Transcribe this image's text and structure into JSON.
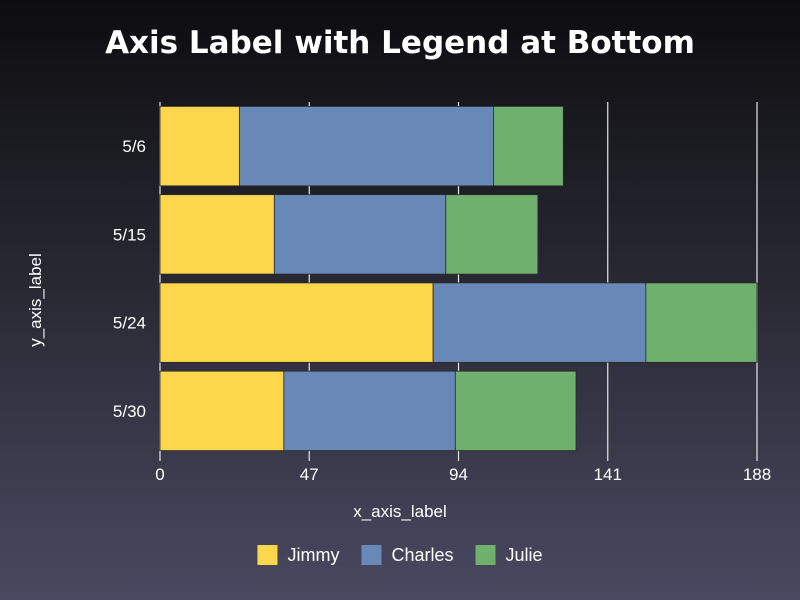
{
  "chart_data": {
    "type": "bar",
    "orientation": "horizontal",
    "stacked": true,
    "title": "Axis Label with Legend at Bottom",
    "xlabel": "x_axis_label",
    "ylabel": "y_axis_label",
    "categories": [
      "5/6",
      "5/15",
      "5/24",
      "5/30"
    ],
    "series": [
      {
        "name": "Jimmy",
        "color": "#fdd74b",
        "values": [
          25,
          36,
          86,
          39
        ]
      },
      {
        "name": "Charles",
        "color": "#6888b7",
        "values": [
          80,
          54,
          67,
          54
        ]
      },
      {
        "name": "Julie",
        "color": "#6fb06e",
        "values": [
          22,
          29,
          35,
          38
        ]
      }
    ],
    "xlim": [
      0,
      188
    ],
    "xticks": [
      0,
      47,
      94,
      141,
      188
    ],
    "grid": true,
    "legend_position": "bottom"
  }
}
